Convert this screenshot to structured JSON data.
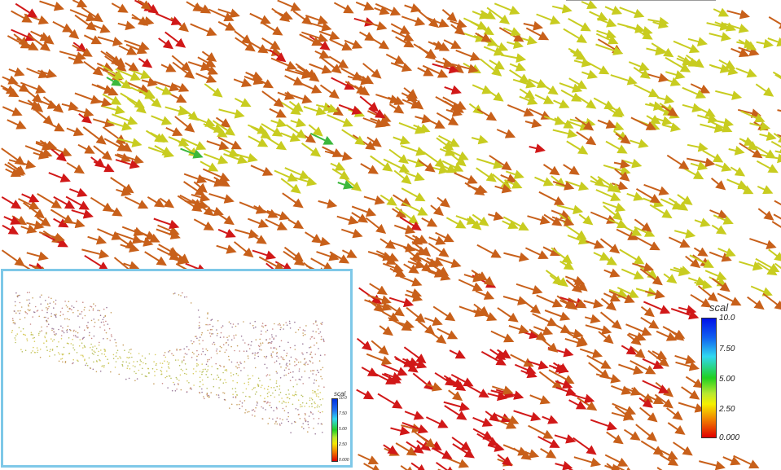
{
  "view": {
    "description_free": true,
    "colormap": [
      "#e00000",
      "#f07800",
      "#f5e800",
      "#20d020",
      "#30d8f0",
      "#0030e0"
    ],
    "arrow_colors": {
      "red": "#d11818",
      "orange": "#d0691c",
      "darkorange": "#b8501a",
      "yellow": "#d8dc28",
      "green": "#3cb83c"
    }
  },
  "legend_main": {
    "title": "scal",
    "ticks": [
      "10.0",
      "7.50",
      "5.00",
      "2.50",
      "0.000"
    ]
  },
  "legend_inset": {
    "title": "scal",
    "ticks": [
      "10.0",
      "7.50",
      "5.00",
      "2.50",
      "0.000"
    ]
  }
}
